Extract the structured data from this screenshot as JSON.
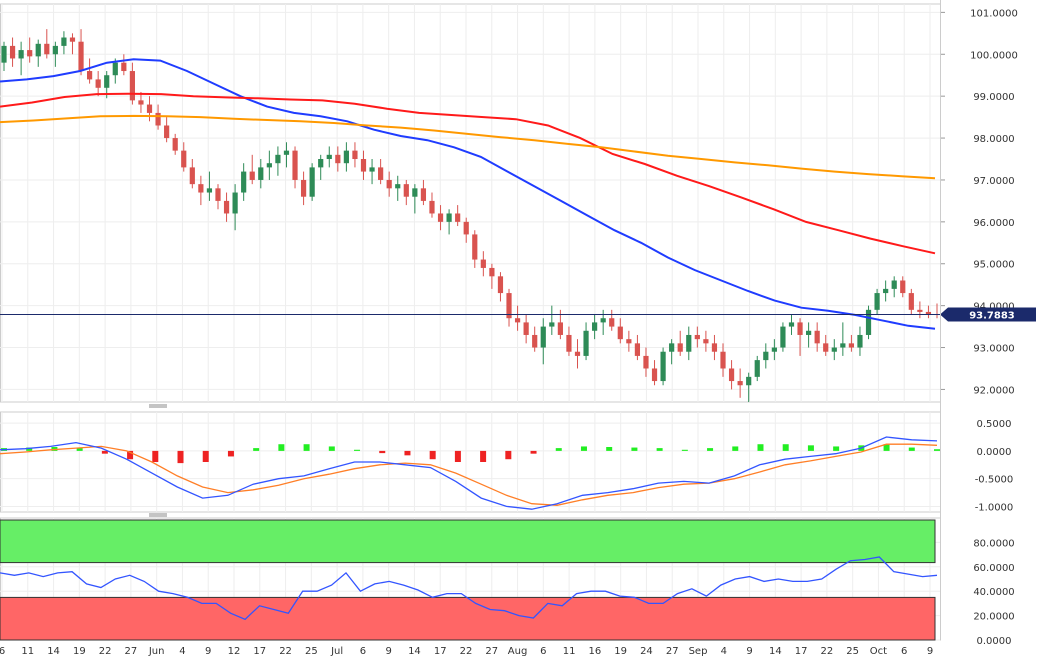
{
  "colors": {
    "bull": "#2e8b57",
    "bear": "#d9534f",
    "sma_fast": "#1f3cff",
    "sma_mid": "#ff1a1a",
    "sma_slow": "#ff9900",
    "price_line": "#1b2a6b",
    "macd_line": "#3355ff",
    "signal_line": "#ff7f27",
    "hist_pos": "#22ee22",
    "hist_neg": "#ee2222",
    "rsi_line": "#3355ff",
    "overbought_zone": "#66ee66",
    "oversold_zone": "#ff6666"
  },
  "x_labels": [
    "6",
    "11",
    "14",
    "19",
    "22",
    "27",
    "Jun",
    "4",
    "9",
    "12",
    "17",
    "22",
    "25",
    "Jul",
    "6",
    "9",
    "14",
    "17",
    "22",
    "27",
    "Aug",
    "6",
    "11",
    "16",
    "19",
    "24",
    "27",
    "Sep",
    "4",
    "9",
    "14",
    "17",
    "22",
    "25",
    "Oct",
    "6",
    "9"
  ],
  "chart_data": [
    {
      "type": "candlestick",
      "panel": "price",
      "ylim": [
        91.7,
        101.2
      ],
      "yticks": [
        "101.0000",
        "100.0000",
        "99.0000",
        "98.0000",
        "97.0000",
        "96.0000",
        "95.0000",
        "94.0000",
        "93.0000",
        "92.0000"
      ],
      "ytick_values": [
        101,
        100,
        99,
        98,
        97,
        96,
        95,
        94,
        93,
        92
      ],
      "last_price_label": "93.7883",
      "last_price": 93.7883,
      "ohlc": [
        [
          99.8,
          100.3,
          99.6,
          100.2
        ],
        [
          100.2,
          100.4,
          99.7,
          99.9
        ],
        [
          99.9,
          100.3,
          99.5,
          100.1
        ],
        [
          100.1,
          100.4,
          99.8,
          99.95
        ],
        [
          99.95,
          100.35,
          99.7,
          100.25
        ],
        [
          100.25,
          100.6,
          99.9,
          100.0
        ],
        [
          100.0,
          100.3,
          99.7,
          100.2
        ],
        [
          100.2,
          100.55,
          100.0,
          100.4
        ],
        [
          100.4,
          100.5,
          100.0,
          100.3
        ],
        [
          100.3,
          100.6,
          99.5,
          99.6
        ],
        [
          99.6,
          99.9,
          99.3,
          99.4
        ],
        [
          99.4,
          99.6,
          99.0,
          99.2
        ],
        [
          99.2,
          99.6,
          98.95,
          99.5
        ],
        [
          99.5,
          99.9,
          99.3,
          99.8
        ],
        [
          99.8,
          100.0,
          99.5,
          99.6
        ],
        [
          99.6,
          99.8,
          98.8,
          98.9
        ],
        [
          98.9,
          99.1,
          98.6,
          98.8
        ],
        [
          98.8,
          99.0,
          98.4,
          98.6
        ],
        [
          98.6,
          98.8,
          98.2,
          98.3
        ],
        [
          98.3,
          98.5,
          97.9,
          98.0
        ],
        [
          98.0,
          98.1,
          97.6,
          97.7
        ],
        [
          97.7,
          97.9,
          97.2,
          97.3
        ],
        [
          97.3,
          97.5,
          96.8,
          96.9
        ],
        [
          96.9,
          97.1,
          96.4,
          96.7
        ],
        [
          96.7,
          97.2,
          96.5,
          96.8
        ],
        [
          96.8,
          96.9,
          96.3,
          96.5
        ],
        [
          96.5,
          96.7,
          96.0,
          96.2
        ],
        [
          96.2,
          96.9,
          95.8,
          96.7
        ],
        [
          96.7,
          97.4,
          96.5,
          97.2
        ],
        [
          97.2,
          97.6,
          96.9,
          97.0
        ],
        [
          97.0,
          97.5,
          96.8,
          97.3
        ],
        [
          97.3,
          97.7,
          97.0,
          97.4
        ],
        [
          97.4,
          97.8,
          97.1,
          97.6
        ],
        [
          97.6,
          97.9,
          97.3,
          97.7
        ],
        [
          97.7,
          97.8,
          96.8,
          97.0
        ],
        [
          97.0,
          97.2,
          96.4,
          96.6
        ],
        [
          96.6,
          97.4,
          96.5,
          97.3
        ],
        [
          97.3,
          97.6,
          97.0,
          97.5
        ],
        [
          97.5,
          97.8,
          97.3,
          97.6
        ],
        [
          97.6,
          97.8,
          97.2,
          97.4
        ],
        [
          97.4,
          97.9,
          97.2,
          97.7
        ],
        [
          97.7,
          97.9,
          97.3,
          97.5
        ],
        [
          97.5,
          97.7,
          97.0,
          97.2
        ],
        [
          97.2,
          97.5,
          96.9,
          97.3
        ],
        [
          97.3,
          97.5,
          96.9,
          97.0
        ],
        [
          97.0,
          97.2,
          96.6,
          96.8
        ],
        [
          96.8,
          97.1,
          96.5,
          96.9
        ],
        [
          96.9,
          97.0,
          96.4,
          96.6
        ],
        [
          96.6,
          96.9,
          96.2,
          96.8
        ],
        [
          96.8,
          97.0,
          96.4,
          96.5
        ],
        [
          96.5,
          96.7,
          96.1,
          96.2
        ],
        [
          96.2,
          96.4,
          95.8,
          96.0
        ],
        [
          96.0,
          96.3,
          95.7,
          96.2
        ],
        [
          96.2,
          96.4,
          95.9,
          96.0
        ],
        [
          96.0,
          96.1,
          95.5,
          95.7
        ],
        [
          95.7,
          95.8,
          94.9,
          95.1
        ],
        [
          95.1,
          95.3,
          94.7,
          94.9
        ],
        [
          94.9,
          95.0,
          94.4,
          94.7
        ],
        [
          94.7,
          94.8,
          94.1,
          94.3
        ],
        [
          94.3,
          94.4,
          93.5,
          93.7
        ],
        [
          93.7,
          94.0,
          93.4,
          93.6
        ],
        [
          93.6,
          93.8,
          93.1,
          93.3
        ],
        [
          93.3,
          93.5,
          92.9,
          93.0
        ],
        [
          93.0,
          93.7,
          92.6,
          93.5
        ],
        [
          93.5,
          94.0,
          93.3,
          93.6
        ],
        [
          93.6,
          93.9,
          93.2,
          93.3
        ],
        [
          93.3,
          93.5,
          92.8,
          92.9
        ],
        [
          92.9,
          93.2,
          92.5,
          92.8
        ],
        [
          92.8,
          93.6,
          92.7,
          93.4
        ],
        [
          93.4,
          93.8,
          93.2,
          93.6
        ],
        [
          93.6,
          93.9,
          93.3,
          93.7
        ],
        [
          93.7,
          93.9,
          93.4,
          93.5
        ],
        [
          93.5,
          93.7,
          93.1,
          93.2
        ],
        [
          93.2,
          93.4,
          92.9,
          93.1
        ],
        [
          93.1,
          93.3,
          92.7,
          92.8
        ],
        [
          92.8,
          93.0,
          92.3,
          92.5
        ],
        [
          92.5,
          92.7,
          92.1,
          92.2
        ],
        [
          92.2,
          93.0,
          92.1,
          92.9
        ],
        [
          92.9,
          93.2,
          92.6,
          93.1
        ],
        [
          93.1,
          93.4,
          92.8,
          92.9
        ],
        [
          92.9,
          93.5,
          92.7,
          93.3
        ],
        [
          93.3,
          93.5,
          93.0,
          93.2
        ],
        [
          93.2,
          93.4,
          92.9,
          93.1
        ],
        [
          93.1,
          93.3,
          92.7,
          92.9
        ],
        [
          92.9,
          93.1,
          92.3,
          92.5
        ],
        [
          92.5,
          92.7,
          92.0,
          92.2
        ],
        [
          92.2,
          92.5,
          91.8,
          92.1
        ],
        [
          92.1,
          92.4,
          91.7,
          92.3
        ],
        [
          92.3,
          92.8,
          92.2,
          92.7
        ],
        [
          92.7,
          93.1,
          92.5,
          92.9
        ],
        [
          92.9,
          93.2,
          92.7,
          93.0
        ],
        [
          93.0,
          93.6,
          92.9,
          93.5
        ],
        [
          93.5,
          93.8,
          93.3,
          93.6
        ],
        [
          93.6,
          93.7,
          92.8,
          93.3
        ],
        [
          93.3,
          93.6,
          93.0,
          93.4
        ],
        [
          93.4,
          93.6,
          92.9,
          93.1
        ],
        [
          93.1,
          93.3,
          92.8,
          92.9
        ],
        [
          92.9,
          93.2,
          92.7,
          93.0
        ],
        [
          93.0,
          93.6,
          92.8,
          93.1
        ],
        [
          93.1,
          93.3,
          92.9,
          93.0
        ],
        [
          93.0,
          93.5,
          92.8,
          93.3
        ],
        [
          93.3,
          94.0,
          93.2,
          93.9
        ],
        [
          93.9,
          94.4,
          93.8,
          94.3
        ],
        [
          94.3,
          94.6,
          94.1,
          94.4
        ],
        [
          94.4,
          94.7,
          94.2,
          94.6
        ],
        [
          94.6,
          94.7,
          94.2,
          94.3
        ],
        [
          94.3,
          94.4,
          93.8,
          93.9
        ],
        [
          93.9,
          94.1,
          93.7,
          93.85
        ],
        [
          93.85,
          94.0,
          93.7,
          93.8
        ],
        [
          93.8,
          94.05,
          93.7,
          93.79
        ]
      ],
      "series": [
        {
          "name": "",
          "color_key": "sma_fast",
          "values": [
            99.35,
            99.4,
            99.48,
            99.6,
            99.8,
            99.88,
            99.85,
            99.6,
            99.3,
            99.0,
            98.75,
            98.6,
            98.52,
            98.4,
            98.2,
            98.05,
            97.95,
            97.78,
            97.55,
            97.2,
            96.85,
            96.5,
            96.15,
            95.8,
            95.5,
            95.15,
            94.85,
            94.6,
            94.35,
            94.12,
            93.95,
            93.88,
            93.78,
            93.65,
            93.52,
            93.45
          ]
        },
        {
          "name": "",
          "color_key": "sma_mid",
          "values": [
            98.75,
            98.85,
            98.98,
            99.05,
            99.06,
            99.05,
            99.0,
            98.97,
            98.95,
            98.92,
            98.9,
            98.82,
            98.7,
            98.6,
            98.55,
            98.5,
            98.45,
            98.3,
            98.0,
            97.62,
            97.38,
            97.1,
            96.85,
            96.58,
            96.3,
            96.0,
            95.8,
            95.6,
            95.42,
            95.25
          ]
        },
        {
          "name": "",
          "color_key": "sma_slow",
          "values": [
            98.38,
            98.42,
            98.47,
            98.52,
            98.53,
            98.52,
            98.5,
            98.46,
            98.43,
            98.4,
            98.36,
            98.3,
            98.25,
            98.18,
            98.1,
            98.02,
            97.95,
            97.86,
            97.78,
            97.68,
            97.58,
            97.5,
            97.42,
            97.35,
            97.27,
            97.2,
            97.14,
            97.09,
            97.04
          ]
        }
      ]
    },
    {
      "type": "line+histogram",
      "panel": "macd",
      "ylim": [
        -1.1,
        0.7
      ],
      "yticks": [
        "0.5000",
        "0.0000",
        "-0.5000",
        "-1.0000"
      ],
      "ytick_values": [
        0.5,
        0.0,
        -0.5,
        -1.0
      ],
      "series": [
        {
          "name": "",
          "color_key": "macd_line",
          "values": [
            0.02,
            0.04,
            0.08,
            0.15,
            0.05,
            -0.15,
            -0.4,
            -0.65,
            -0.85,
            -0.8,
            -0.6,
            -0.5,
            -0.45,
            -0.32,
            -0.2,
            -0.2,
            -0.25,
            -0.3,
            -0.55,
            -0.85,
            -1.0,
            -1.05,
            -0.95,
            -0.8,
            -0.75,
            -0.68,
            -0.58,
            -0.55,
            -0.58,
            -0.45,
            -0.25,
            -0.15,
            -0.1,
            -0.05,
            0.05,
            0.25,
            0.2,
            0.18
          ]
        },
        {
          "name": "",
          "color_key": "signal_line",
          "values": [
            -0.05,
            -0.02,
            0.02,
            0.05,
            0.08,
            0.0,
            -0.2,
            -0.45,
            -0.65,
            -0.75,
            -0.7,
            -0.62,
            -0.5,
            -0.42,
            -0.32,
            -0.25,
            -0.22,
            -0.25,
            -0.4,
            -0.6,
            -0.8,
            -0.95,
            -0.98,
            -0.88,
            -0.8,
            -0.75,
            -0.66,
            -0.6,
            -0.58,
            -0.5,
            -0.38,
            -0.25,
            -0.18,
            -0.1,
            -0.02,
            0.12,
            0.12,
            0.1
          ]
        },
        {
          "name": "",
          "color_key": "hist",
          "values": [
            0.05,
            0.06,
            0.07,
            0.05,
            -0.05,
            -0.15,
            -0.2,
            -0.22,
            -0.2,
            -0.1,
            0.05,
            0.12,
            0.12,
            0.08,
            0.02,
            -0.04,
            -0.08,
            -0.15,
            -0.2,
            -0.2,
            -0.15,
            -0.05,
            0.05,
            0.08,
            0.07,
            0.06,
            0.05,
            0.02,
            0.05,
            0.08,
            0.12,
            0.12,
            0.1,
            0.08,
            0.1,
            0.12,
            0.06,
            0.03
          ]
        }
      ]
    },
    {
      "type": "line",
      "panel": "rsi",
      "ylim": [
        0,
        100
      ],
      "yticks": [
        "80.0000",
        "60.0000",
        "40.0000",
        "20.0000",
        "0.0000"
      ],
      "ytick_values": [
        80,
        60,
        40,
        20,
        0
      ],
      "overbought": 70,
      "oversold": 30,
      "series": [
        {
          "name": "",
          "color_key": "rsi_line",
          "values": [
            55,
            53,
            55,
            52,
            55,
            56,
            46,
            43,
            50,
            53,
            48,
            40,
            38,
            35,
            30,
            30,
            22,
            17,
            28,
            25,
            22,
            40,
            40,
            45,
            55,
            40,
            46,
            48,
            45,
            41,
            35,
            38,
            38,
            30,
            25,
            24,
            20,
            18,
            30,
            28,
            38,
            40,
            40,
            36,
            35,
            30,
            30,
            38,
            42,
            36,
            45,
            50,
            52,
            48,
            50,
            48,
            48,
            50,
            58,
            65,
            66,
            68,
            56,
            54,
            52,
            53
          ]
        }
      ]
    }
  ]
}
